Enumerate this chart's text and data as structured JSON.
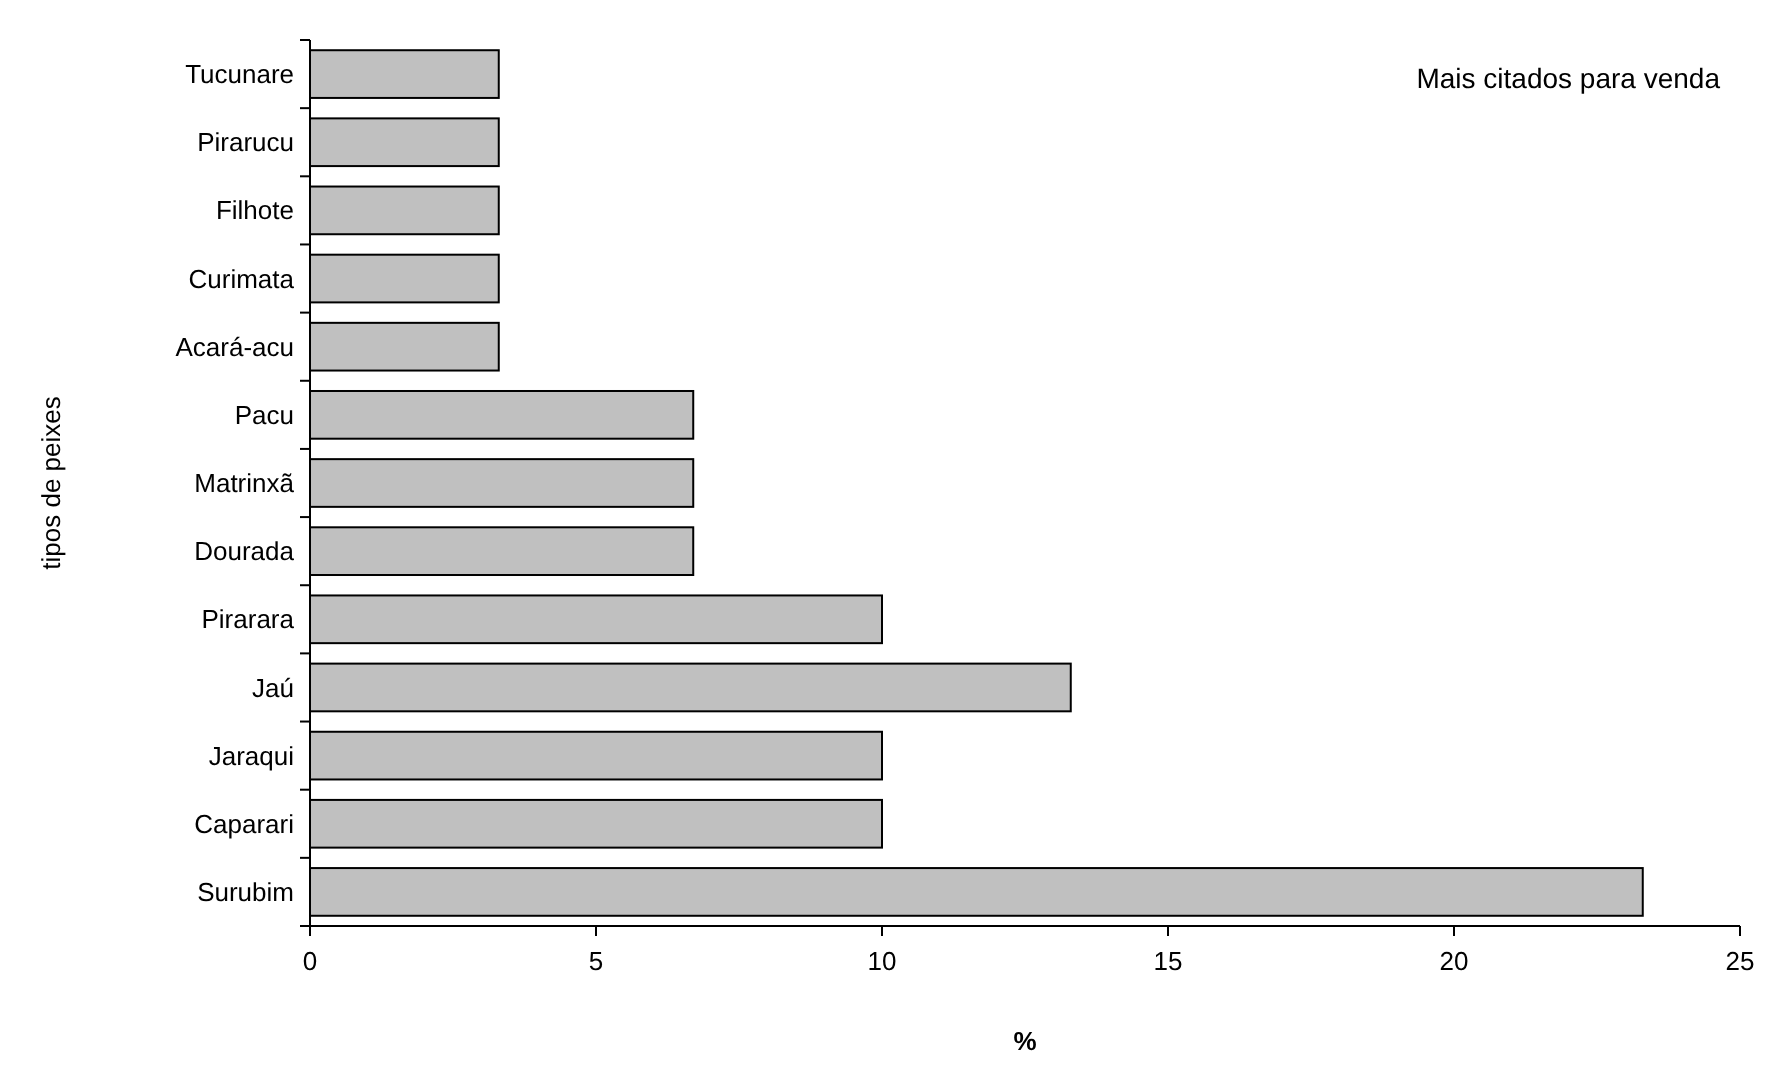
{
  "chart_data": {
    "type": "bar",
    "orientation": "horizontal",
    "categories": [
      "Tucunare",
      "Pirarucu",
      "Filhote",
      "Curimata",
      "Acará-acu",
      "Pacu",
      "Matrinxã",
      "Dourada",
      "Pirarara",
      "Jaú",
      "Jaraqui",
      "Caparari",
      "Surubim"
    ],
    "values": [
      3.3,
      3.3,
      3.3,
      3.3,
      3.3,
      6.7,
      6.7,
      6.7,
      10,
      13.3,
      10,
      10,
      23.3
    ],
    "color": "#c0c0c0",
    "xlim": [
      0,
      25
    ],
    "xticks": [
      0,
      5,
      10,
      15,
      20,
      25
    ],
    "xlabel": "%",
    "ylabel": "tipos de peixes",
    "annotations": [
      "Mais citados para venda"
    ],
    "grid": false
  }
}
